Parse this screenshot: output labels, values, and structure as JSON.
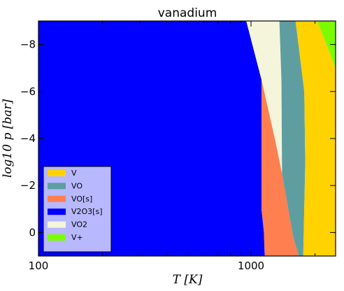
{
  "chart_data": {
    "type": "area",
    "title": "vanadium",
    "xlabel": "T [K]",
    "ylabel": "log10 p [bar]",
    "xscale": "log",
    "xlim": [
      100,
      2500
    ],
    "ylim": [
      1,
      -9
    ],
    "x_ticks": [
      {
        "value": 100,
        "label": "100"
      },
      {
        "value": 1000,
        "label": "1000"
      }
    ],
    "y_ticks": [
      {
        "value": -8,
        "label": "−8"
      },
      {
        "value": -6,
        "label": "−6"
      },
      {
        "value": -4,
        "label": "−4"
      },
      {
        "value": -2,
        "label": "−2"
      },
      {
        "value": 0,
        "label": "0"
      }
    ],
    "grid": false,
    "legend_position": "lower-left",
    "legend": [
      {
        "name": "V",
        "color": "#ffd200"
      },
      {
        "name": "VO",
        "color": "#5f9ea0"
      },
      {
        "name": "VO[s]",
        "color": "#ff7f50"
      },
      {
        "name": "V2O3[s]",
        "color": "#0000ff"
      },
      {
        "name": "VO2",
        "color": "#f5f5dc"
      },
      {
        "name": "V+",
        "color": "#7cfc00"
      }
    ],
    "boundaries": [
      {
        "between": "V2O3[s] | VO2",
        "points": [
          [
            950,
            -9
          ],
          [
            1120,
            -6.5
          ]
        ]
      },
      {
        "between": "V2O3[s] | VO[s]",
        "points": [
          [
            1120,
            -6.5
          ],
          [
            1120,
            -1
          ],
          [
            1150,
            0
          ],
          [
            1160,
            1
          ]
        ]
      },
      {
        "between": "VO[s] | VO2",
        "points": [
          [
            1120,
            -6.5
          ],
          [
            1300,
            -3.9
          ],
          [
            1400,
            -2.5
          ]
        ]
      },
      {
        "between": "VO[s] | VO",
        "points": [
          [
            1400,
            -2.5
          ],
          [
            1580,
            0.2
          ],
          [
            1680,
            1
          ]
        ]
      },
      {
        "between": "VO2 | VO",
        "points": [
          [
            1360,
            -9
          ],
          [
            1390,
            -6.5
          ],
          [
            1400,
            -2.5
          ]
        ]
      },
      {
        "between": "VO | V",
        "points": [
          [
            1620,
            -9
          ],
          [
            1780,
            -6
          ],
          [
            1800,
            -3
          ],
          [
            1760,
            1
          ]
        ]
      },
      {
        "between": "V | V+",
        "points": [
          [
            2050,
            -9
          ],
          [
            2500,
            -7
          ]
        ]
      }
    ]
  }
}
